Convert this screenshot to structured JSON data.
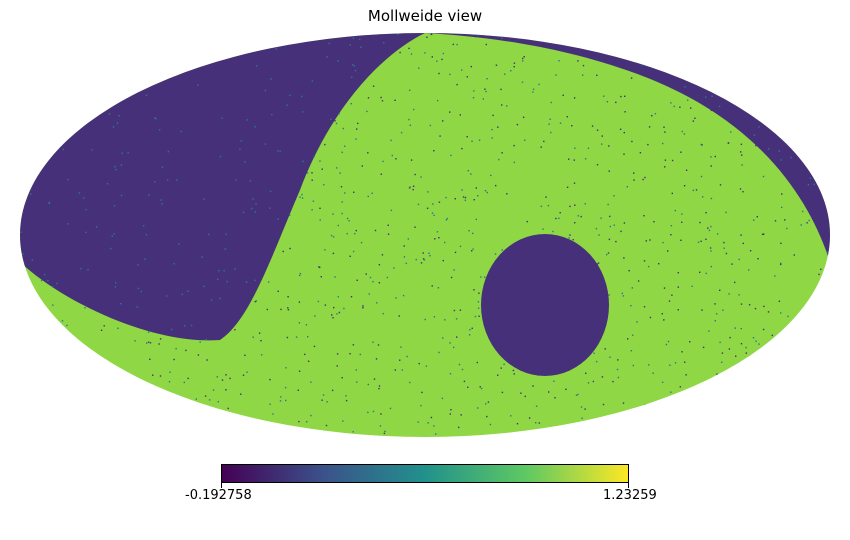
{
  "title": "Mollweide view",
  "colorbar": {
    "min_label": "-0.192758",
    "max_label": "1.23259",
    "min": -0.192758,
    "max": 1.23259,
    "colormap": "viridis",
    "stops": [
      "#440154",
      "#3b528b",
      "#21918c",
      "#5ec962",
      "#fde725"
    ]
  },
  "map": {
    "projection": "mollweide",
    "background_value_color": "#47307a",
    "dominant_value_color": "#8fd744",
    "noise_color": "#2a788e",
    "regions": [
      {
        "name": "masked-north-west-region",
        "color": "#47307a"
      },
      {
        "name": "masked-north-east-strip",
        "color": "#47307a"
      },
      {
        "name": "masked-oval-hole",
        "color": "#47307a"
      }
    ]
  }
}
